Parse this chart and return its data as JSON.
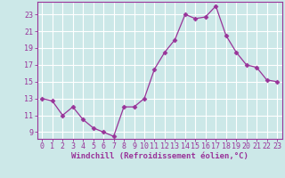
{
  "x": [
    0,
    1,
    2,
    3,
    4,
    5,
    6,
    7,
    8,
    9,
    10,
    11,
    12,
    13,
    14,
    15,
    16,
    17,
    18,
    19,
    20,
    21,
    22,
    23
  ],
  "y": [
    13,
    12.7,
    11,
    12,
    10.5,
    9.5,
    9,
    8.5,
    12,
    12,
    13,
    16.5,
    18.5,
    20,
    23,
    22.5,
    22.7,
    24,
    20.5,
    18.5,
    17,
    16.7,
    15.2,
    15
  ],
  "line_color": "#993399",
  "marker": "D",
  "marker_size": 2.5,
  "bg_color": "#cce8e8",
  "grid_color": "#ffffff",
  "xlabel": "Windchill (Refroidissement éolien,°C)",
  "xlim": [
    -0.5,
    23.5
  ],
  "ylim": [
    8.2,
    24.5
  ],
  "yticks": [
    9,
    11,
    13,
    15,
    17,
    19,
    21,
    23
  ],
  "xticks": [
    0,
    1,
    2,
    3,
    4,
    5,
    6,
    7,
    8,
    9,
    10,
    11,
    12,
    13,
    14,
    15,
    16,
    17,
    18,
    19,
    20,
    21,
    22,
    23
  ],
  "tick_fontsize": 6.0,
  "xlabel_fontsize": 6.5
}
